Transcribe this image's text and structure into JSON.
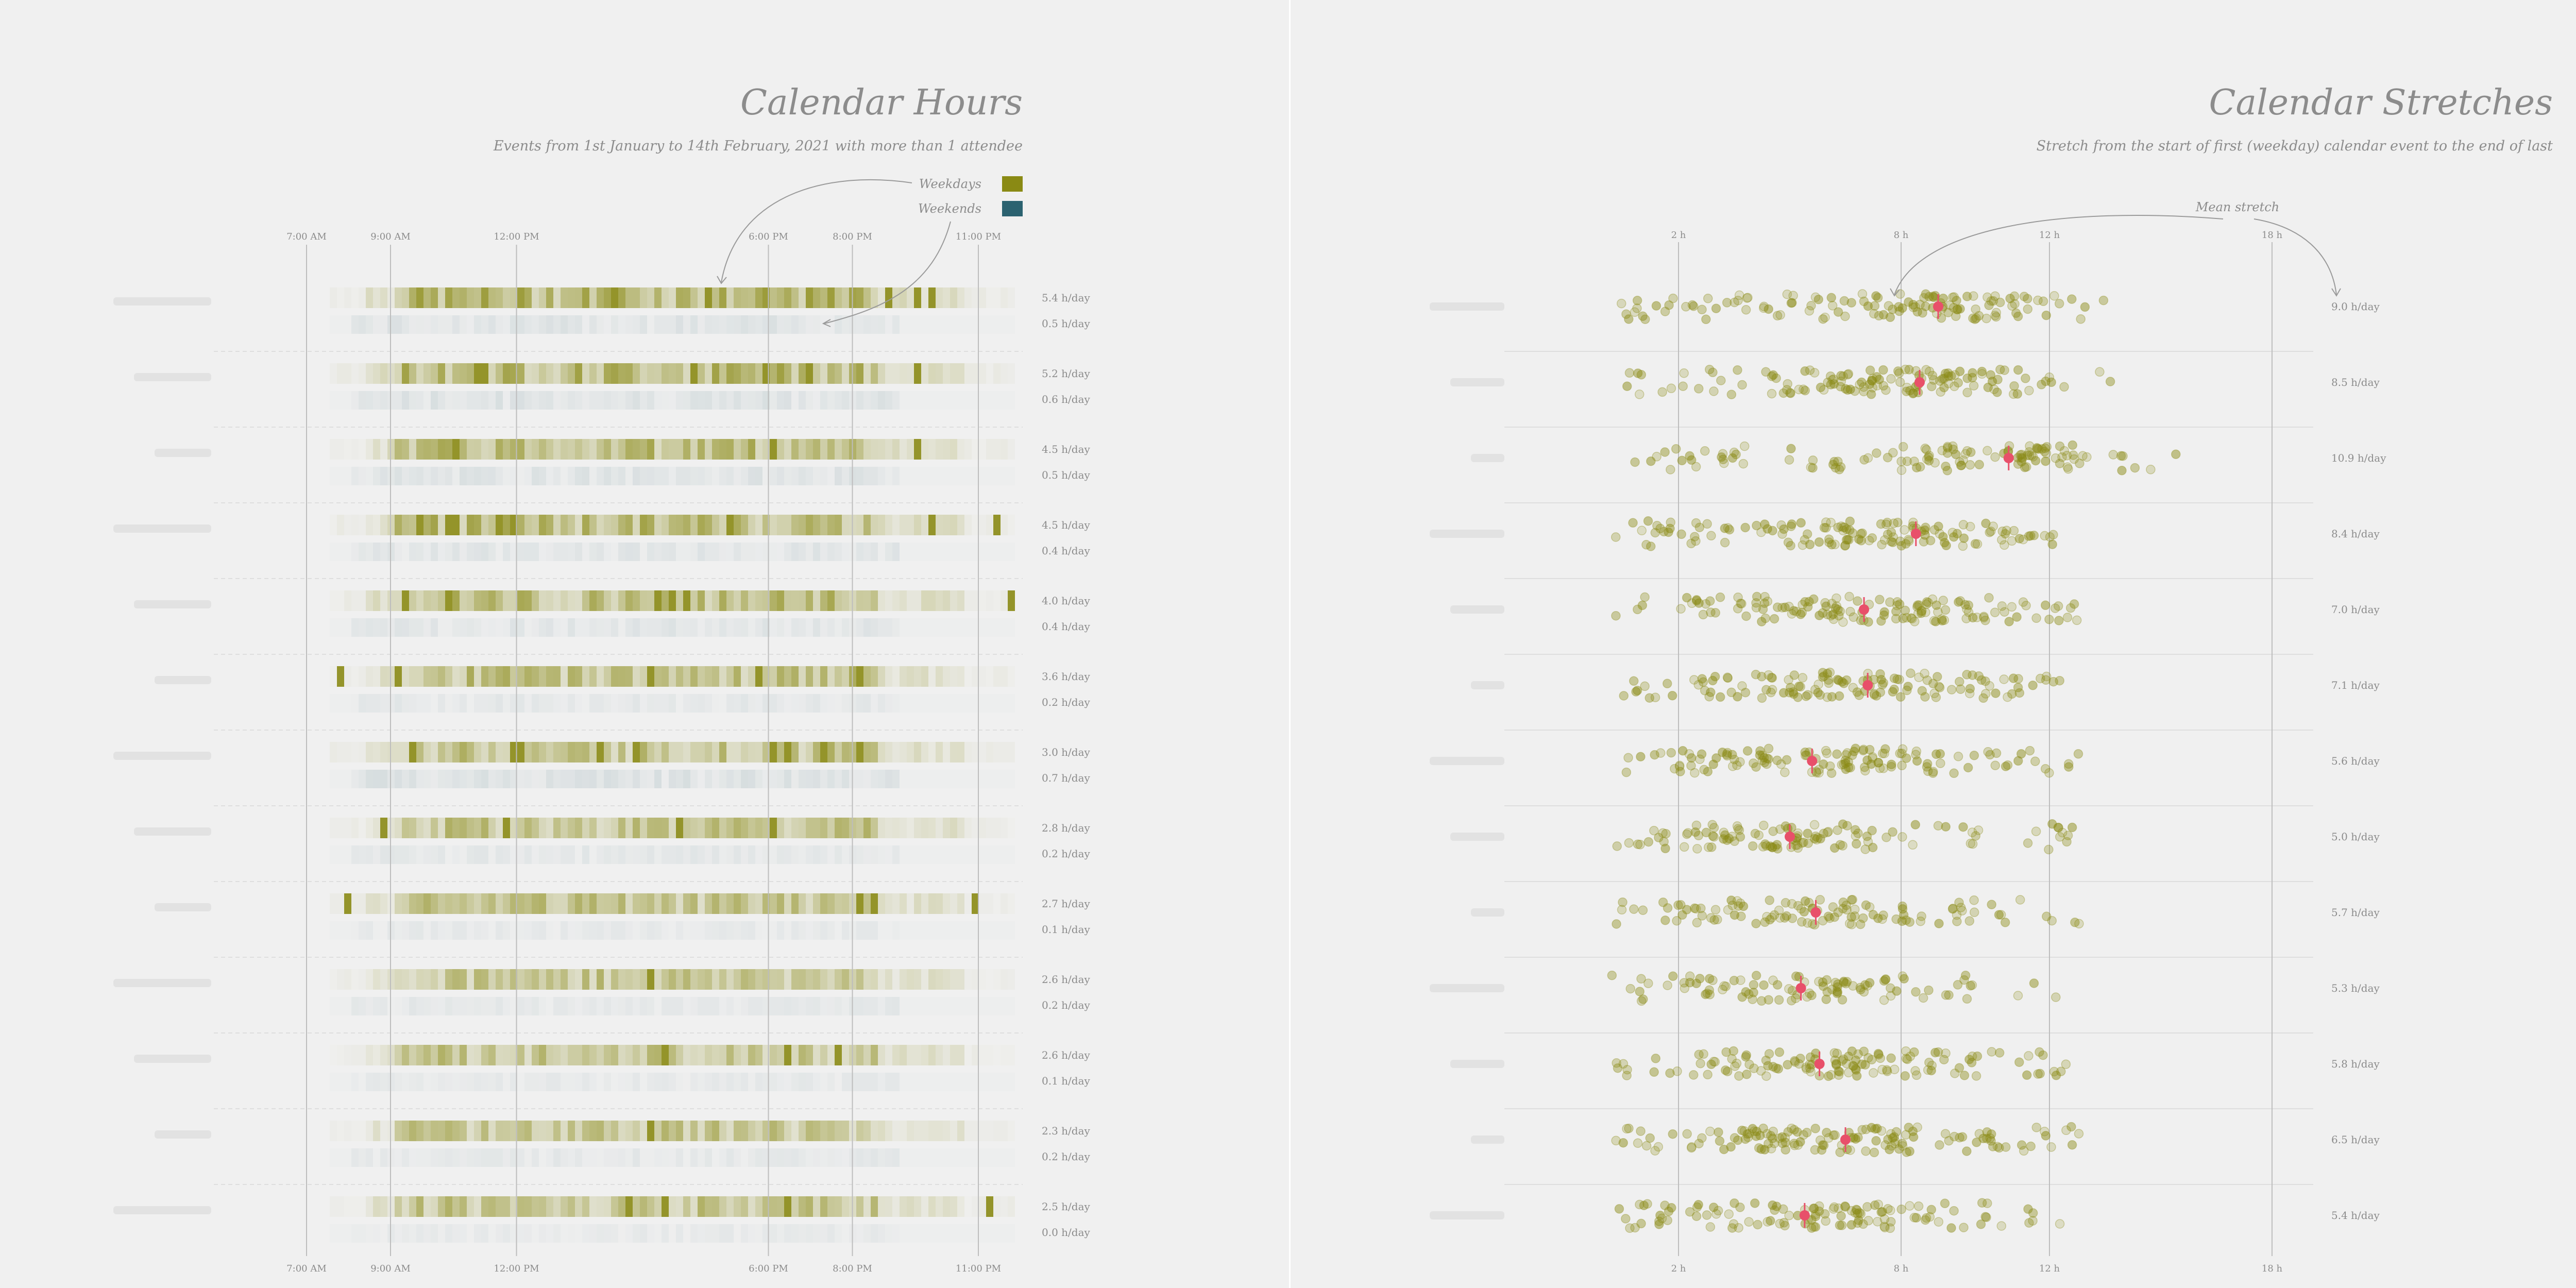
{
  "colors": {
    "background": "#f0f0f0",
    "weekday": "#8a8a14",
    "weekend": "#2b6270",
    "mean_marker": "#e8506a",
    "grid": "#cfcfcf",
    "text": "#8c8c8c"
  },
  "chart_data": [
    {
      "type": "heatmap",
      "title": "Calendar Hours",
      "subtitle": "Events from 1st January to 14th February, 2021 with more than 1 attendee",
      "legend": {
        "placement": "top-right",
        "entries": [
          {
            "label": "Weekdays",
            "color": "#8a8a14"
          },
          {
            "label": "Weekends",
            "color": "#2b6270"
          }
        ]
      },
      "x_axis": {
        "range_hours": [
          3,
          24
        ],
        "ticks": [
          {
            "hour": 7,
            "label": "7:00 AM"
          },
          {
            "hour": 9,
            "label": "9:00 AM"
          },
          {
            "hour": 12,
            "label": "12:00 PM"
          },
          {
            "hour": 18,
            "label": "6:00 PM"
          },
          {
            "hour": 20,
            "label": "8:00 PM"
          },
          {
            "hour": 23,
            "label": "11:00 PM"
          }
        ],
        "position": "top and bottom",
        "grid": true
      },
      "rows": [
        {
          "weekday_label": "5.4 h/day",
          "weekend_label": "0.5 h/day",
          "weekday_hours": 5.4,
          "weekend_hours": 0.5
        },
        {
          "weekday_label": "5.2 h/day",
          "weekend_label": "0.6 h/day",
          "weekday_hours": 5.2,
          "weekend_hours": 0.6
        },
        {
          "weekday_label": "4.5 h/day",
          "weekend_label": "0.5 h/day",
          "weekday_hours": 4.5,
          "weekend_hours": 0.5
        },
        {
          "weekday_label": "4.5 h/day",
          "weekend_label": "0.4 h/day",
          "weekday_hours": 4.5,
          "weekend_hours": 0.4
        },
        {
          "weekday_label": "4.0 h/day",
          "weekend_label": "0.4 h/day",
          "weekday_hours": 4.0,
          "weekend_hours": 0.4
        },
        {
          "weekday_label": "3.6 h/day",
          "weekend_label": "0.2 h/day",
          "weekday_hours": 3.6,
          "weekend_hours": 0.2
        },
        {
          "weekday_label": "3.0 h/day",
          "weekend_label": "0.7 h/day",
          "weekday_hours": 3.0,
          "weekend_hours": 0.7
        },
        {
          "weekday_label": "2.8 h/day",
          "weekend_label": "0.2 h/day",
          "weekday_hours": 2.8,
          "weekend_hours": 0.2
        },
        {
          "weekday_label": "2.7 h/day",
          "weekend_label": "0.1 h/day",
          "weekday_hours": 2.7,
          "weekend_hours": 0.1
        },
        {
          "weekday_label": "2.6 h/day",
          "weekend_label": "0.2 h/day",
          "weekday_hours": 2.6,
          "weekend_hours": 0.2
        },
        {
          "weekday_label": "2.6 h/day",
          "weekend_label": "0.1 h/day",
          "weekday_hours": 2.6,
          "weekend_hours": 0.1
        },
        {
          "weekday_label": "2.3 h/day",
          "weekend_label": "0.2 h/day",
          "weekday_hours": 2.3,
          "weekend_hours": 0.2
        },
        {
          "weekday_label": "2.5 h/day",
          "weekend_label": "0.0 h/day",
          "weekday_hours": 2.5,
          "weekend_hours": 0.0
        }
      ]
    },
    {
      "type": "scatter",
      "title": "Calendar Stretches",
      "subtitle": "Stretch from the start of first (weekday) calendar event to the end of last",
      "annotation": "Mean stretch",
      "x_axis": {
        "range_hours": [
          -1,
          22
        ],
        "ticks": [
          {
            "value": 2,
            "label": "2 h"
          },
          {
            "value": 8,
            "label": "8 h"
          },
          {
            "value": 12,
            "label": "12 h"
          },
          {
            "value": 18,
            "label": "18 h"
          }
        ],
        "position": "top and bottom",
        "grid": true
      },
      "rows": [
        {
          "mean_label": "9.0 h/day",
          "mean": 9.0
        },
        {
          "mean_label": "8.5 h/day",
          "mean": 8.5
        },
        {
          "mean_label": "10.9 h/day",
          "mean": 10.9
        },
        {
          "mean_label": "8.4 h/day",
          "mean": 8.4
        },
        {
          "mean_label": "7.0 h/day",
          "mean": 7.0
        },
        {
          "mean_label": "7.1 h/day",
          "mean": 7.1
        },
        {
          "mean_label": "5.6 h/day",
          "mean": 5.6
        },
        {
          "mean_label": "5.0 h/day",
          "mean": 5.0
        },
        {
          "mean_label": "5.7 h/day",
          "mean": 5.7
        },
        {
          "mean_label": "5.3 h/day",
          "mean": 5.3
        },
        {
          "mean_label": "5.8 h/day",
          "mean": 5.8
        },
        {
          "mean_label": "6.5 h/day",
          "mean": 6.5
        },
        {
          "mean_label": "5.4 h/day",
          "mean": 5.4
        }
      ]
    }
  ]
}
